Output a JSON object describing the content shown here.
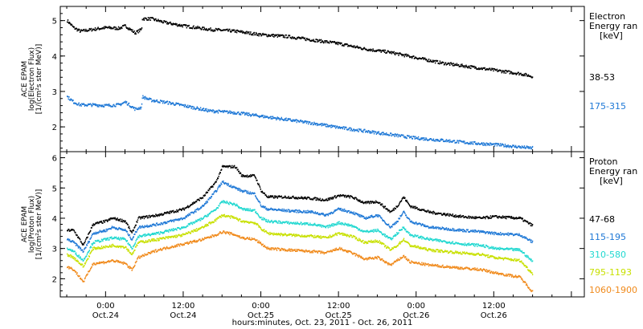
{
  "chart_data": {
    "type": "scatter",
    "xlabel": "hours:minutes, Oct. 23, 2011 - Oct. 26, 2011",
    "x_ticks": [
      {
        "t": 0,
        "l1": "0:00",
        "l2": "Oct.24"
      },
      {
        "t": 12,
        "l1": "12:00",
        "l2": "Oct.24"
      },
      {
        "t": 24,
        "l1": "0:00",
        "l2": "Oct.25"
      },
      {
        "t": 36,
        "l1": "12:00",
        "l2": "Oct.25"
      },
      {
        "t": 48,
        "l1": "0:00",
        "l2": "Oct.26"
      },
      {
        "t": 60,
        "l1": "12:00",
        "l2": "Oct.26"
      }
    ],
    "xlim": [
      -7,
      74
    ],
    "panels": [
      {
        "id": "electron",
        "ylabel": [
          "ACE EPAM",
          "log(Electron Flux)",
          "[1/(cm²s ster MeV)]"
        ],
        "ylim": [
          1.3,
          5.4
        ],
        "yticks": [
          2,
          3,
          4,
          5
        ],
        "legend_title": [
          "Electron",
          "Energy ran",
          "[keV]"
        ],
        "series": [
          {
            "name": "38-53",
            "color": "#000000",
            "points": [
              [
                -6,
                5.0
              ],
              [
                -5,
                4.8
              ],
              [
                -4,
                4.7
              ],
              [
                -2,
                4.75
              ],
              [
                0,
                4.8
              ],
              [
                2,
                4.78
              ],
              [
                3,
                4.85
              ],
              [
                4.5,
                4.65
              ],
              [
                5.5,
                4.75
              ],
              [
                5.6,
                5.05
              ],
              [
                7,
                5.05
              ],
              [
                9,
                4.95
              ],
              [
                12,
                4.85
              ],
              [
                16,
                4.75
              ],
              [
                20,
                4.7
              ],
              [
                24,
                4.6
              ],
              [
                28,
                4.55
              ],
              [
                32,
                4.45
              ],
              [
                36,
                4.35
              ],
              [
                40,
                4.2
              ],
              [
                44,
                4.1
              ],
              [
                48,
                3.95
              ],
              [
                52,
                3.8
              ],
              [
                56,
                3.7
              ],
              [
                60,
                3.6
              ],
              [
                64,
                3.5
              ],
              [
                66,
                3.42
              ]
            ]
          },
          {
            "name": "175-315",
            "color": "#1e78d6",
            "points": [
              [
                -6,
                2.85
              ],
              [
                -5,
                2.7
              ],
              [
                -4,
                2.62
              ],
              [
                -2,
                2.62
              ],
              [
                0,
                2.6
              ],
              [
                2,
                2.62
              ],
              [
                3,
                2.7
              ],
              [
                4.5,
                2.5
              ],
              [
                5.5,
                2.55
              ],
              [
                5.6,
                2.85
              ],
              [
                7,
                2.75
              ],
              [
                9,
                2.7
              ],
              [
                12,
                2.6
              ],
              [
                16,
                2.45
              ],
              [
                20,
                2.4
              ],
              [
                24,
                2.3
              ],
              [
                28,
                2.2
              ],
              [
                32,
                2.1
              ],
              [
                36,
                1.98
              ],
              [
                40,
                1.88
              ],
              [
                44,
                1.78
              ],
              [
                48,
                1.68
              ],
              [
                52,
                1.62
              ],
              [
                56,
                1.55
              ],
              [
                60,
                1.5
              ],
              [
                64,
                1.43
              ],
              [
                66,
                1.4
              ]
            ]
          }
        ]
      },
      {
        "id": "proton",
        "ylabel": [
          "ACE EPAM",
          "log(Proton Flux)",
          "[1/(cm²s ster MeV)]"
        ],
        "ylim": [
          1.4,
          6.2
        ],
        "yticks": [
          2,
          3,
          4,
          5,
          6
        ],
        "legend_title": [
          "Proton",
          "Energy ran",
          "[keV]"
        ],
        "series": [
          {
            "name": "47-68",
            "color": "#000000",
            "points": [
              [
                -6,
                3.6
              ],
              [
                -5,
                3.6
              ],
              [
                -3.5,
                3.1
              ],
              [
                -2,
                3.8
              ],
              [
                0,
                3.9
              ],
              [
                1,
                4.0
              ],
              [
                3,
                3.9
              ],
              [
                4,
                3.5
              ],
              [
                5,
                4.0
              ],
              [
                8,
                4.1
              ],
              [
                12,
                4.3
              ],
              [
                15,
                4.7
              ],
              [
                17,
                5.2
              ],
              [
                18,
                5.7
              ],
              [
                20,
                5.7
              ],
              [
                21,
                5.4
              ],
              [
                23,
                5.4
              ],
              [
                24,
                4.9
              ],
              [
                25,
                4.7
              ],
              [
                28,
                4.7
              ],
              [
                32,
                4.65
              ],
              [
                34,
                4.6
              ],
              [
                36,
                4.75
              ],
              [
                38,
                4.7
              ],
              [
                40,
                4.5
              ],
              [
                42,
                4.55
              ],
              [
                44,
                4.2
              ],
              [
                45,
                4.4
              ],
              [
                46,
                4.7
              ],
              [
                47,
                4.4
              ],
              [
                50,
                4.2
              ],
              [
                55,
                4.05
              ],
              [
                58,
                4.0
              ],
              [
                60,
                4.05
              ],
              [
                64,
                4.0
              ],
              [
                66,
                3.75
              ]
            ]
          },
          {
            "name": "115-195",
            "color": "#1e78d6",
            "points": [
              [
                -6,
                3.3
              ],
              [
                -5,
                3.2
              ],
              [
                -3.5,
                2.9
              ],
              [
                -2,
                3.5
              ],
              [
                0,
                3.6
              ],
              [
                1,
                3.7
              ],
              [
                3,
                3.6
              ],
              [
                4,
                3.3
              ],
              [
                5,
                3.7
              ],
              [
                8,
                3.8
              ],
              [
                12,
                4.0
              ],
              [
                15,
                4.4
              ],
              [
                17,
                4.9
              ],
              [
                18,
                5.2
              ],
              [
                20,
                5.0
              ],
              [
                21,
                4.9
              ],
              [
                23,
                4.8
              ],
              [
                24,
                4.4
              ],
              [
                25,
                4.3
              ],
              [
                28,
                4.25
              ],
              [
                32,
                4.2
              ],
              [
                34,
                4.1
              ],
              [
                36,
                4.3
              ],
              [
                38,
                4.2
              ],
              [
                40,
                4.0
              ],
              [
                42,
                4.1
              ],
              [
                44,
                3.7
              ],
              [
                45,
                3.9
              ],
              [
                46,
                4.2
              ],
              [
                47,
                3.9
              ],
              [
                50,
                3.7
              ],
              [
                55,
                3.6
              ],
              [
                58,
                3.55
              ],
              [
                60,
                3.5
              ],
              [
                64,
                3.45
              ],
              [
                66,
                3.2
              ]
            ]
          },
          {
            "name": "310-580",
            "color": "#20d8d0",
            "points": [
              [
                -6,
                3.0
              ],
              [
                -5,
                2.9
              ],
              [
                -3.5,
                2.6
              ],
              [
                -2,
                3.2
              ],
              [
                0,
                3.3
              ],
              [
                1,
                3.35
              ],
              [
                3,
                3.3
              ],
              [
                4,
                3.0
              ],
              [
                5,
                3.4
              ],
              [
                8,
                3.5
              ],
              [
                12,
                3.7
              ],
              [
                15,
                4.0
              ],
              [
                17,
                4.3
              ],
              [
                18,
                4.55
              ],
              [
                20,
                4.45
              ],
              [
                21,
                4.3
              ],
              [
                23,
                4.25
              ],
              [
                24,
                4.0
              ],
              [
                25,
                3.9
              ],
              [
                28,
                3.85
              ],
              [
                32,
                3.8
              ],
              [
                34,
                3.7
              ],
              [
                36,
                3.85
              ],
              [
                38,
                3.75
              ],
              [
                40,
                3.55
              ],
              [
                42,
                3.6
              ],
              [
                44,
                3.3
              ],
              [
                45,
                3.5
              ],
              [
                46,
                3.7
              ],
              [
                47,
                3.45
              ],
              [
                50,
                3.3
              ],
              [
                55,
                3.15
              ],
              [
                58,
                3.1
              ],
              [
                60,
                3.0
              ],
              [
                64,
                2.95
              ],
              [
                66,
                2.55
              ]
            ]
          },
          {
            "name": "795-1193",
            "color": "#c8e000",
            "points": [
              [
                -6,
                2.8
              ],
              [
                -5,
                2.7
              ],
              [
                -3.5,
                2.4
              ],
              [
                -2,
                3.0
              ],
              [
                0,
                3.05
              ],
              [
                1,
                3.1
              ],
              [
                3,
                3.05
              ],
              [
                4,
                2.8
              ],
              [
                5,
                3.2
              ],
              [
                8,
                3.3
              ],
              [
                12,
                3.45
              ],
              [
                15,
                3.7
              ],
              [
                17,
                3.95
              ],
              [
                18,
                4.1
              ],
              [
                20,
                4.0
              ],
              [
                21,
                3.9
              ],
              [
                23,
                3.85
              ],
              [
                24,
                3.65
              ],
              [
                25,
                3.5
              ],
              [
                28,
                3.45
              ],
              [
                32,
                3.4
              ],
              [
                34,
                3.35
              ],
              [
                36,
                3.5
              ],
              [
                38,
                3.4
              ],
              [
                40,
                3.2
              ],
              [
                42,
                3.25
              ],
              [
                44,
                2.95
              ],
              [
                45,
                3.1
              ],
              [
                46,
                3.3
              ],
              [
                47,
                3.1
              ],
              [
                50,
                2.95
              ],
              [
                55,
                2.85
              ],
              [
                58,
                2.8
              ],
              [
                60,
                2.7
              ],
              [
                64,
                2.6
              ],
              [
                66,
                2.15
              ]
            ]
          },
          {
            "name": "1060-1900",
            "color": "#f08a1c",
            "points": [
              [
                -6,
                2.4
              ],
              [
                -5,
                2.3
              ],
              [
                -3.5,
                1.9
              ],
              [
                -2,
                2.5
              ],
              [
                0,
                2.55
              ],
              [
                1,
                2.6
              ],
              [
                3,
                2.5
              ],
              [
                4,
                2.3
              ],
              [
                5,
                2.7
              ],
              [
                8,
                2.95
              ],
              [
                12,
                3.15
              ],
              [
                15,
                3.3
              ],
              [
                17,
                3.45
              ],
              [
                18,
                3.55
              ],
              [
                20,
                3.45
              ],
              [
                21,
                3.35
              ],
              [
                23,
                3.3
              ],
              [
                24,
                3.15
              ],
              [
                25,
                3.0
              ],
              [
                28,
                2.95
              ],
              [
                32,
                2.9
              ],
              [
                34,
                2.85
              ],
              [
                36,
                3.0
              ],
              [
                38,
                2.85
              ],
              [
                40,
                2.65
              ],
              [
                42,
                2.7
              ],
              [
                44,
                2.45
              ],
              [
                45,
                2.6
              ],
              [
                46,
                2.75
              ],
              [
                47,
                2.55
              ],
              [
                50,
                2.45
              ],
              [
                55,
                2.35
              ],
              [
                58,
                2.3
              ],
              [
                60,
                2.2
              ],
              [
                64,
                2.05
              ],
              [
                66,
                1.55
              ]
            ]
          }
        ]
      }
    ]
  }
}
